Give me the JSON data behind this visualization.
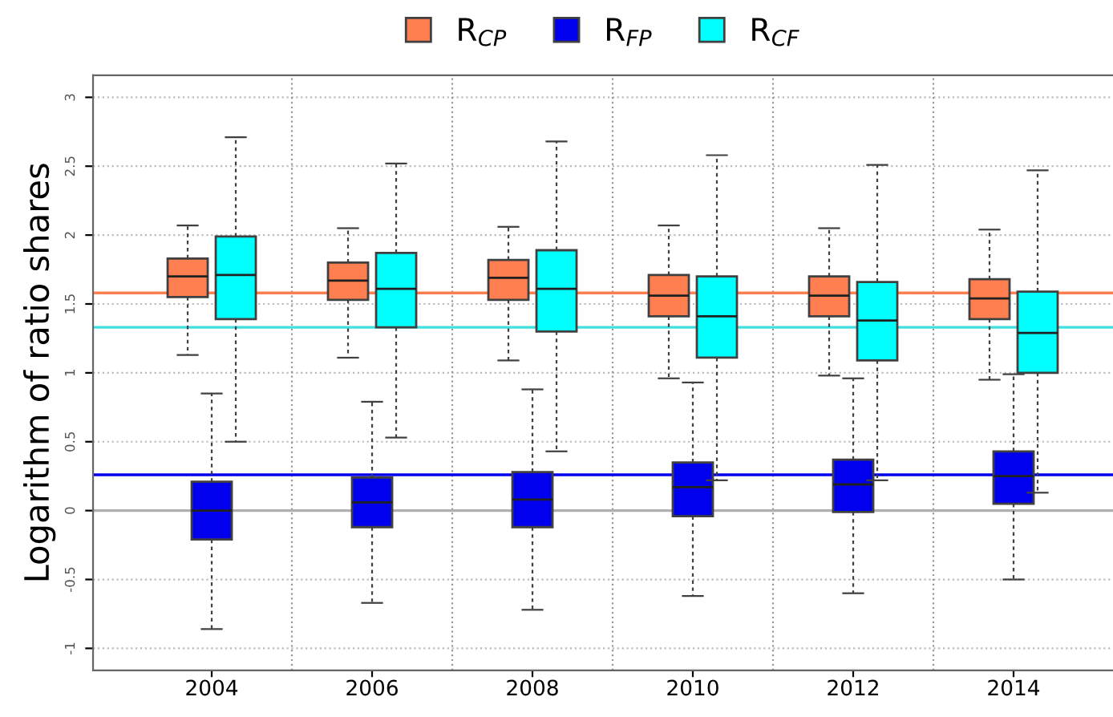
{
  "chart_data": {
    "type": "box",
    "ylabel": "Logarithm of ratio shares",
    "categories": [
      "2004",
      "2006",
      "2008",
      "2010",
      "2012",
      "2014"
    ],
    "ylim": [
      -1.16,
      3.16
    ],
    "yticks": [
      -1,
      -0.5,
      0,
      0.5,
      1,
      1.5,
      2,
      2.5,
      3
    ],
    "grid": true,
    "legend": "top",
    "series": [
      {
        "name": "R$_{CP}$",
        "color": "#ff7f50",
        "boxes": [
          {
            "low": 1.13,
            "q1": 1.55,
            "median": 1.7,
            "q3": 1.83,
            "high": 2.07
          },
          {
            "low": 1.11,
            "q1": 1.53,
            "median": 1.67,
            "q3": 1.8,
            "high": 2.05
          },
          {
            "low": 1.09,
            "q1": 1.53,
            "median": 1.69,
            "q3": 1.82,
            "high": 2.06
          },
          {
            "low": 0.96,
            "q1": 1.41,
            "median": 1.56,
            "q3": 1.71,
            "high": 2.07
          },
          {
            "low": 0.98,
            "q1": 1.41,
            "median": 1.56,
            "q3": 1.7,
            "high": 2.05
          },
          {
            "low": 0.95,
            "q1": 1.39,
            "median": 1.54,
            "q3": 1.68,
            "high": 2.04
          }
        ]
      },
      {
        "name": "R$_{FP}$",
        "color": "#0000ee",
        "boxes": [
          {
            "low": -0.86,
            "q1": -0.21,
            "median": 0.0,
            "q3": 0.21,
            "high": 0.85
          },
          {
            "low": -0.67,
            "q1": -0.12,
            "median": 0.06,
            "q3": 0.24,
            "high": 0.79
          },
          {
            "low": -0.72,
            "q1": -0.12,
            "median": 0.08,
            "q3": 0.28,
            "high": 0.88
          },
          {
            "low": -0.62,
            "q1": -0.04,
            "median": 0.17,
            "q3": 0.35,
            "high": 0.93
          },
          {
            "low": -0.6,
            "q1": -0.01,
            "median": 0.19,
            "q3": 0.37,
            "high": 0.96
          },
          {
            "low": -0.5,
            "q1": 0.05,
            "median": 0.25,
            "q3": 0.43,
            "high": 0.99
          }
        ]
      },
      {
        "name": "R$_{CF}$",
        "color": "#00ffff",
        "boxes": [
          {
            "low": 0.5,
            "q1": 1.39,
            "median": 1.71,
            "q3": 1.99,
            "high": 2.71
          },
          {
            "low": 0.53,
            "q1": 1.33,
            "median": 1.61,
            "q3": 1.87,
            "high": 2.52
          },
          {
            "low": 0.43,
            "q1": 1.3,
            "median": 1.61,
            "q3": 1.89,
            "high": 2.68
          },
          {
            "low": 0.22,
            "q1": 1.11,
            "median": 1.41,
            "q3": 1.7,
            "high": 2.58
          },
          {
            "low": 0.22,
            "q1": 1.09,
            "median": 1.38,
            "q3": 1.66,
            "high": 2.51
          },
          {
            "low": 0.13,
            "q1": 1.0,
            "median": 1.29,
            "q3": 1.59,
            "high": 2.47
          }
        ]
      }
    ],
    "ref_lines": [
      {
        "axis": "y",
        "value": 1.58,
        "color": "#ff7f50"
      },
      {
        "axis": "y",
        "value": 1.33,
        "color": "#40e0e0"
      },
      {
        "axis": "y",
        "value": 0.26,
        "color": "#0000ee"
      },
      {
        "axis": "y",
        "value": 0,
        "color": "#b0b0b0"
      }
    ]
  }
}
